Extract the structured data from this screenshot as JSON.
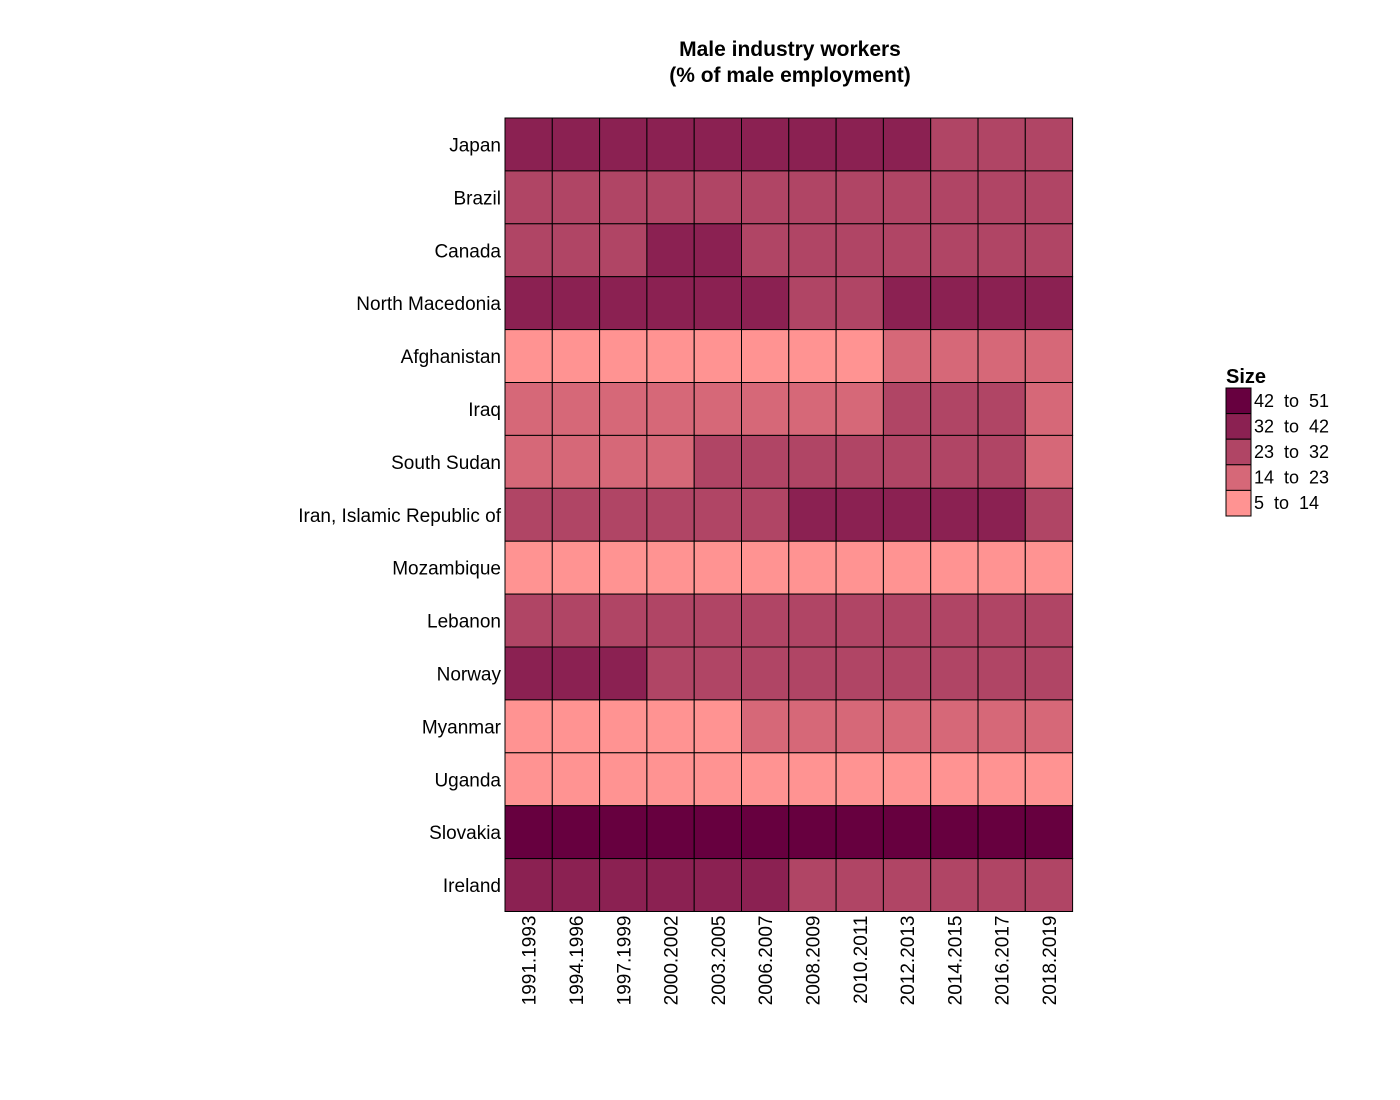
{
  "chart_data": {
    "type": "heatmap",
    "title": "Male industry workers",
    "subtitle": "(% of male employment)",
    "xlabel": "",
    "ylabel": "",
    "x_categories": [
      "1991.1993",
      "1994.1996",
      "1997.1999",
      "2000.2002",
      "2003.2005",
      "2006.2007",
      "2008.2009",
      "2010.2011",
      "2012.2013",
      "2014.2015",
      "2016.2017",
      "2018.2019"
    ],
    "y_categories": [
      "Japan",
      "Brazil",
      "Canada",
      "North Macedonia",
      "Afghanistan",
      "Iraq",
      "South Sudan",
      "Iran, Islamic Republic of",
      "Mozambique",
      "Lebanon",
      "Norway",
      "Myanmar",
      "Uganda",
      "Slovakia",
      "Ireland"
    ],
    "values": [
      [
        40,
        40,
        40,
        40,
        40,
        40,
        40,
        40,
        40,
        30,
        30,
        30
      ],
      [
        27,
        27,
        27,
        27,
        27,
        27,
        27,
        27,
        27,
        27,
        27,
        27
      ],
      [
        29,
        29,
        29,
        33,
        33,
        29,
        29,
        29,
        29,
        29,
        29,
        29
      ],
      [
        38,
        38,
        38,
        38,
        38,
        38,
        30,
        30,
        38,
        38,
        38,
        38
      ],
      [
        8,
        8,
        8,
        8,
        8,
        8,
        8,
        8,
        18,
        18,
        18,
        18
      ],
      [
        19,
        19,
        19,
        19,
        19,
        19,
        19,
        19,
        26,
        26,
        26,
        19
      ],
      [
        19,
        19,
        19,
        19,
        25,
        25,
        25,
        25,
        25,
        25,
        25,
        19
      ],
      [
        30,
        30,
        30,
        30,
        30,
        30,
        34,
        34,
        34,
        34,
        34,
        30
      ],
      [
        7,
        7,
        7,
        7,
        7,
        7,
        7,
        7,
        7,
        7,
        7,
        7
      ],
      [
        27,
        27,
        27,
        27,
        27,
        27,
        27,
        27,
        27,
        27,
        27,
        27
      ],
      [
        35,
        35,
        35,
        29,
        29,
        29,
        29,
        29,
        29,
        29,
        29,
        29
      ],
      [
        9,
        9,
        9,
        9,
        9,
        18,
        18,
        18,
        18,
        18,
        18,
        18
      ],
      [
        9,
        9,
        9,
        9,
        9,
        9,
        9,
        9,
        9,
        9,
        9,
        9
      ],
      [
        47,
        47,
        47,
        47,
        47,
        47,
        47,
        47,
        47,
        47,
        47,
        47
      ],
      [
        37,
        37,
        37,
        37,
        37,
        37,
        29,
        29,
        29,
        29,
        29,
        29
      ]
    ],
    "legend": {
      "title": "Size",
      "placement": "right",
      "bins": [
        {
          "label": "42  to  51",
          "min": 42,
          "max": 51,
          "color": "#67003f"
        },
        {
          "label": "32  to  42",
          "min": 32,
          "max": 42,
          "color": "#8b2152"
        },
        {
          "label": "23  to  32",
          "min": 23,
          "max": 32,
          "color": "#b04565"
        },
        {
          "label": "14  to  23",
          "min": 14,
          "max": 23,
          "color": "#d66878"
        },
        {
          "label": "5  to  14",
          "min": 5,
          "max": 14,
          "color": "#ff9392"
        }
      ]
    },
    "grid": false
  }
}
